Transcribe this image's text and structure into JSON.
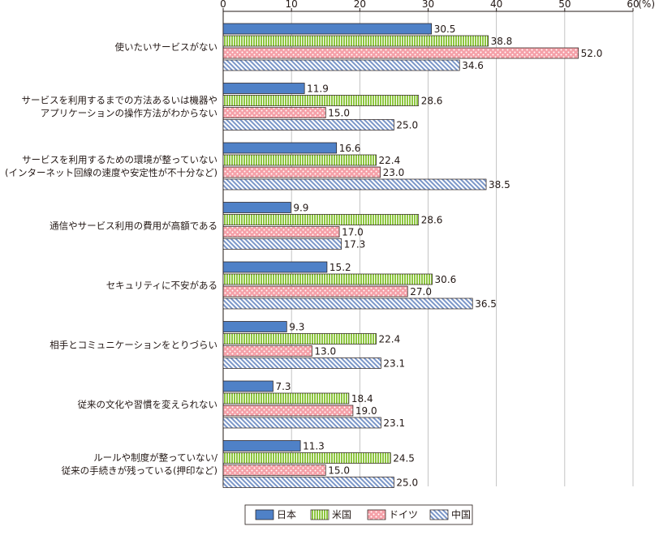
{
  "chart_data": {
    "type": "bar",
    "orientation": "horizontal",
    "unit": "(%)",
    "xlim": [
      0,
      60
    ],
    "ticks": [
      "0",
      "10",
      "20",
      "30",
      "40",
      "50",
      "60"
    ],
    "grid": true,
    "legend_position": "bottom",
    "categories": [
      [
        "使いたいサービスがない"
      ],
      [
        "サービスを利用するまでの方法あるいは機器や",
        "アプリケーションの操作方法がわからない"
      ],
      [
        "サービスを利用するための環境が整っていない",
        "(インターネット回線の速度や安定性が不十分など)"
      ],
      [
        "通信やサービス利用の費用が高額である"
      ],
      [
        "セキュリティに不安がある"
      ],
      [
        "相手とコミュニケーションをとりづらい"
      ],
      [
        "従来の文化や習慣を変えられない"
      ],
      [
        "ルールや制度が整っていない/",
        "従来の手続きが残っている(押印など)"
      ]
    ],
    "series": [
      {
        "name": "日本",
        "color": "#4f81c7",
        "pattern": "solid",
        "values": [
          30.5,
          11.9,
          16.6,
          9.9,
          15.2,
          9.3,
          7.3,
          11.3
        ]
      },
      {
        "name": "米国",
        "color": "#8dc63f",
        "pattern": "vertical-stripes",
        "values": [
          38.8,
          28.6,
          22.4,
          28.6,
          30.6,
          22.4,
          18.4,
          24.5
        ]
      },
      {
        "name": "ドイツ",
        "color": "#f5a0a8",
        "pattern": "dots",
        "values": [
          52.0,
          15.0,
          23.0,
          17.0,
          27.0,
          13.0,
          19.0,
          15.0
        ]
      },
      {
        "name": "中国",
        "color": "#7a96c8",
        "pattern": "diagonal-hatch",
        "values": [
          34.6,
          25.0,
          38.5,
          17.3,
          36.5,
          23.1,
          23.1,
          25.0
        ]
      }
    ]
  }
}
